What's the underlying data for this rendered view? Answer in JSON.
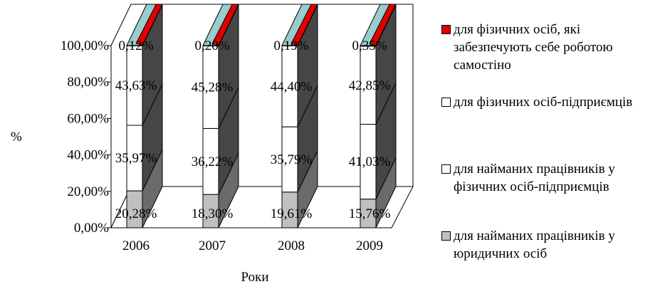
{
  "chart_data": {
    "type": "bar",
    "stacked": true,
    "three_d": true,
    "categories": [
      "2006",
      "2007",
      "2008",
      "2009"
    ],
    "series": [
      {
        "name": "для найманих працівників у юридичних осіб",
        "values": [
          20.28,
          18.3,
          19.61,
          15.76
        ],
        "labels": [
          "20,28%",
          "18,30%",
          "19,61%",
          "15,76%"
        ],
        "color": "#c0c0c0"
      },
      {
        "name": "для найманих працівників у фізичних осіб-підприємців",
        "values": [
          35.97,
          36.22,
          35.79,
          41.03
        ],
        "labels": [
          "35,97%",
          "36,22%",
          "35,79%",
          "41,03%"
        ],
        "color": "#ffffff"
      },
      {
        "name": "для фізичних осіб-підприємців",
        "values": [
          43.63,
          45.28,
          44.4,
          42.85
        ],
        "labels": [
          "43,63%",
          "45,28%",
          "44,40%",
          "42,85%"
        ],
        "color": "#ffffff"
      },
      {
        "name": "для фізичних осіб, які забезпечують себе роботою самостіно",
        "values": [
          0.12,
          0.2,
          0.19,
          0.35
        ],
        "labels": [
          "0,12%",
          "0,20%",
          "0,19%",
          "0,35%"
        ],
        "color": "#e00000"
      }
    ],
    "top_face_color": "#99cccc",
    "side_color": "#808080",
    "y_ticks": [
      "0,00%",
      "20,00%",
      "40,00%",
      "60,00%",
      "80,00%",
      "100,00%"
    ],
    "ylim": [
      0,
      100
    ],
    "ylabel": "%",
    "xlabel": "Роки",
    "legend_position": "right",
    "grid": false
  }
}
